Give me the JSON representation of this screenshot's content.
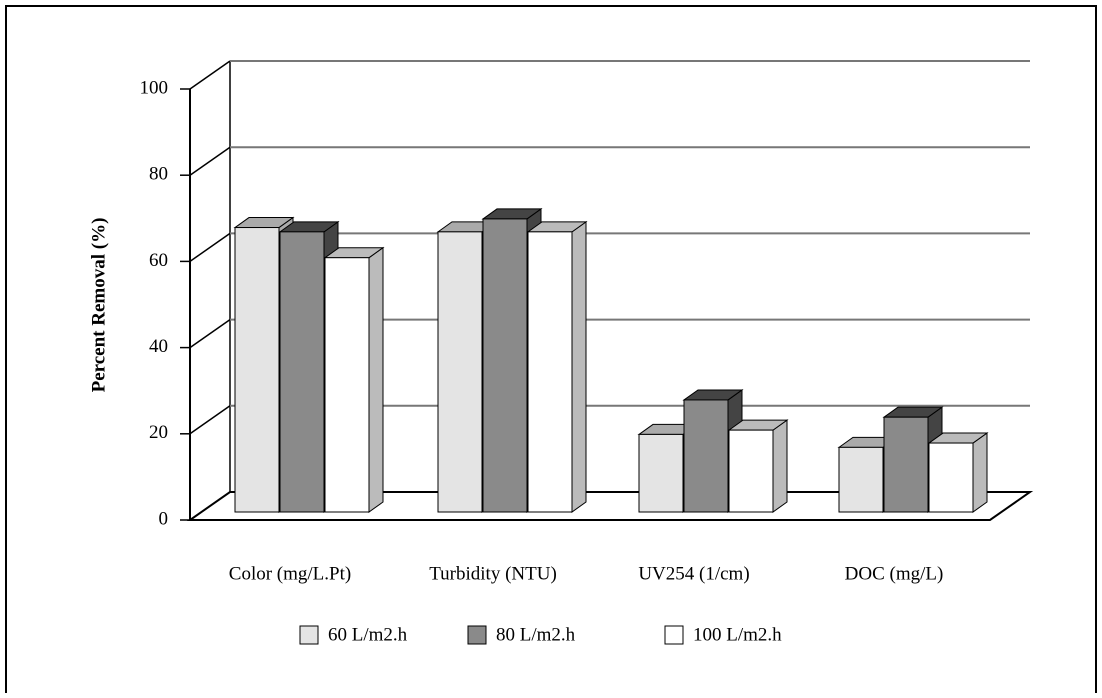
{
  "chart_data": {
    "type": "bar3d",
    "y_label": "Percent Removal (%)",
    "categories": [
      "Color (mg/L.Pt)",
      "Turbidity (NTU)",
      "UV254 (1/cm)",
      "DOC (mg/L)"
    ],
    "series": [
      {
        "name": "60 L/m2.h",
        "color": "#e4e4e4",
        "values": [
          66,
          65,
          18,
          15
        ]
      },
      {
        "name": "80 L/m2.h",
        "color": "#8a8a8a",
        "values": [
          65,
          68,
          26,
          22
        ]
      },
      {
        "name": "100 L/m2.h",
        "color": "#ffffff",
        "values": [
          59,
          65,
          19,
          16
        ]
      }
    ],
    "ylim": [
      0,
      100
    ],
    "yticks": [
      0,
      20,
      40,
      60,
      80,
      100
    ],
    "grid": true
  }
}
